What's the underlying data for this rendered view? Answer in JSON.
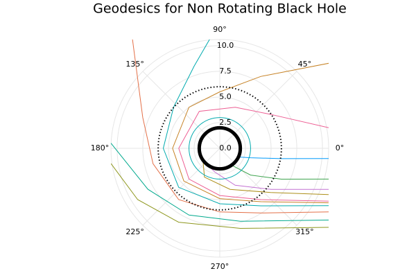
{
  "chart_data": {
    "type": "polar",
    "title": "Geodesics for Non Rotating Black Hole",
    "rlim": [
      0,
      10.6
    ],
    "rticks": [
      {
        "value": 0,
        "label": "0.0"
      },
      {
        "value": 2.5,
        "label": "2.5"
      },
      {
        "value": 5,
        "label": "5.0"
      },
      {
        "value": 7.5,
        "label": "7.5"
      },
      {
        "value": 10,
        "label": "10.0"
      }
    ],
    "thetaticks": [
      {
        "value": 0,
        "label": "0°"
      },
      {
        "value": 45,
        "label": "45°"
      },
      {
        "value": 90,
        "label": "90°"
      },
      {
        "value": 135,
        "label": "135°"
      },
      {
        "value": 180,
        "label": "180°"
      },
      {
        "value": 225,
        "label": "225°"
      },
      {
        "value": 270,
        "label": "270°"
      },
      {
        "value": 315,
        "label": "315°"
      }
    ],
    "grid": true,
    "series": [
      {
        "color": "#009AFA",
        "theta": [
          354.6,
          350.5,
          343,
          335
        ],
        "r": [
          10.65,
          6.08,
          3.13,
          2.0
        ]
      },
      {
        "color": "#3EA44E",
        "theta": [
          344.2,
          333.4,
          319,
          305
        ],
        "r": [
          11.02,
          6.71,
          3.97,
          2.0
        ]
      },
      {
        "color": "#C371D2",
        "theta": [
          339.3,
          321.3,
          292.6,
          257.7,
          235
        ],
        "r": [
          11.33,
          6.4,
          3.9,
          2.35,
          2.0
        ]
      },
      {
        "color": "#AC8E18",
        "theta": [
          337,
          319,
          284,
          242,
          215
        ],
        "r": [
          11.52,
          6.56,
          4.12,
          3.18,
          2.0
        ]
      },
      {
        "color": "#ED5E93",
        "theta": [
          334.1,
          308.7,
          270,
          225,
          180,
          119,
          69.4,
          33.4,
          10.7
        ],
        "r": [
          11.78,
          6.4,
          4.6,
          4.24,
          4.0,
          4.12,
          4.27,
          5.99,
          10.79
        ]
      },
      {
        "color": "#C68225",
        "theta": [
          333.4,
          307.6,
          270,
          222.4,
          180,
          126.9,
          90,
          60.3,
          38
        ],
        "r": [
          11.85,
          6.56,
          4.9,
          4.74,
          4.6,
          5.0,
          5.5,
          8.06,
          13.46
        ]
      },
      {
        "color": "#00AAAE",
        "theta": [
          332.2,
          305.5,
          270,
          223.5,
          180,
          138.4,
          107.4,
          95.4
        ],
        "r": [
          11.99,
          6.88,
          5.4,
          5.52,
          5.5,
          6.02,
          8.38,
          10.65
        ]
      },
      {
        "color": "#E36F47",
        "theta": [
          329.7,
          302.4,
          270,
          231.3,
          193,
          158.2,
          128.7
        ],
        "r": [
          12.28,
          7.46,
          6.2,
          6.4,
          6.67,
          8.08,
          13.59
        ]
      },
      {
        "color": "#00A98D",
        "theta": [
          326.6,
          285.7,
          245.2,
          209.7,
          177.3
        ],
        "r": [
          12.7,
          7.38,
          7.16,
          8.06,
          10.61
        ]
      },
      {
        "color": "#8E971E",
        "theta": [
          324,
          284.4,
          240.9,
          212,
          188
        ],
        "r": [
          13.1,
          8.05,
          8.24,
          9.43,
          10.7
        ]
      }
    ],
    "circles": [
      {
        "r": 3,
        "color": "#00AAAE",
        "width": 1
      },
      {
        "r": 6,
        "color": "#000000",
        "width": 2,
        "dotted": true
      },
      {
        "r": 2,
        "color": "#000000",
        "width": 5
      }
    ]
  }
}
